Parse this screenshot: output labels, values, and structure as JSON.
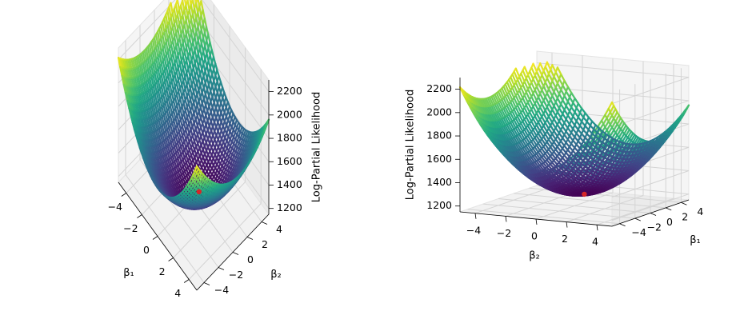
{
  "chart_data": [
    {
      "type": "surface-3d-contour",
      "title": "",
      "xlabel": "β₁",
      "ylabel": "β₂",
      "zlabel": "Log-Partial Likelihood",
      "xlim": [
        -5,
        5
      ],
      "ylim": [
        -5,
        5
      ],
      "zlim": [
        1150,
        2300
      ],
      "x_ticks": [
        "−4",
        "−2",
        "0",
        "2",
        "4"
      ],
      "y_ticks": [
        "−4",
        "−2",
        "0",
        "2",
        "4"
      ],
      "z_ticks": [
        "1200",
        "1400",
        "1600",
        "1800",
        "2000",
        "2200"
      ],
      "colormap": "viridis",
      "surface_min": 1250,
      "surface_max": 2230,
      "minimum_marker": {
        "x": 0.6,
        "y": 0.1,
        "z": 1255,
        "color": "#d62728"
      },
      "view": {
        "elevation": 30,
        "azimuth": -60
      }
    },
    {
      "type": "surface-3d",
      "title": "",
      "xlabel": "β₂",
      "ylabel": "β₁",
      "zlabel": "Log-Partial Likelihood",
      "xlim": [
        -5,
        5
      ],
      "ylim": [
        -5,
        5
      ],
      "zlim": [
        1150,
        2300
      ],
      "x_ticks": [
        "−4",
        "−2",
        "0",
        "2",
        "4"
      ],
      "y_ticks": [
        "−4",
        "−2",
        "0",
        "2",
        "4"
      ],
      "z_ticks": [
        "1200",
        "1400",
        "1600",
        "1800",
        "2000",
        "2200"
      ],
      "colormap": "viridis",
      "surface_min": 1250,
      "surface_max": 2230,
      "minimum_marker": {
        "x": 0.6,
        "y": 0.1,
        "z": 1255,
        "color": "#d62728"
      },
      "view": {
        "elevation": 15,
        "azimuth": 30
      }
    }
  ]
}
